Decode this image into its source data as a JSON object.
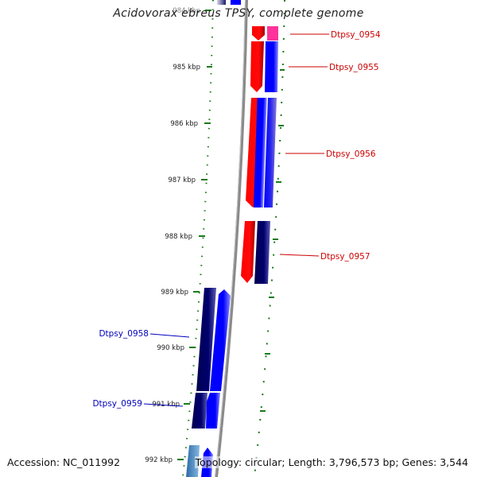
{
  "header": {
    "title": "Acidovorax ebreus TPSY, complete genome"
  },
  "footer": {
    "accession": "Accession: NC_011992",
    "topology": "Topology: circular; Length: 3,796,573 bp; Genes: 3,544"
  },
  "scale": {
    "ticks": [
      "984 kbp",
      "985 kbp",
      "986 kbp",
      "987 kbp",
      "988 kbp",
      "989 kbp",
      "990 kbp",
      "991 kbp",
      "992 kbp"
    ]
  },
  "genes": [
    {
      "label": "Dtpsy_0954",
      "side": "right",
      "color": "#cc0000"
    },
    {
      "label": "Dtpsy_0955",
      "side": "right",
      "color": "#cc0000"
    },
    {
      "label": "Dtpsy_0956",
      "side": "right",
      "color": "#cc0000"
    },
    {
      "label": "Dtpsy_0957",
      "side": "right",
      "color": "#cc0000"
    },
    {
      "label": "Dtpsy_0958",
      "side": "left",
      "color": "#0000bb"
    },
    {
      "label": "Dtpsy_0959",
      "side": "left",
      "color": "#0000bb"
    }
  ],
  "colors": {
    "backbone": "#8a8a8a",
    "tick": "#1a7a1a",
    "forward_red": "#ff0000",
    "blue": "#0000ff",
    "navy": "#000066",
    "magenta": "#ff3399",
    "light_blue": "#4a8fc8"
  }
}
